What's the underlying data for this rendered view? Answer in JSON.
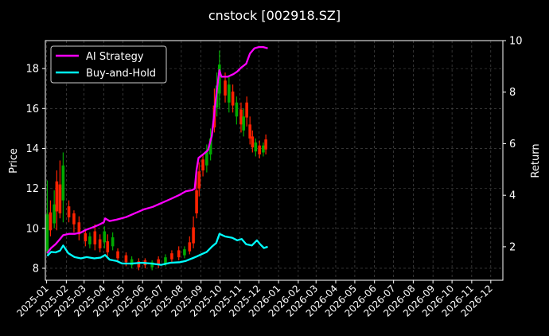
{
  "chart_data": {
    "type": "line",
    "title": "cnstock [002918.SZ]",
    "ylabel": "Price",
    "y2label": "Return",
    "xlabel": "",
    "x_ticks": [
      "2025-01",
      "2025-02",
      "2025-03",
      "2025-04",
      "2025-05",
      "2025-06",
      "2025-07",
      "2025-08",
      "2025-09",
      "2025-10",
      "2025-11",
      "2025-12",
      "2026-01",
      "2026-02",
      "2026-03",
      "2026-04",
      "2026-05",
      "2026-06",
      "2026-07",
      "2026-08",
      "2026-09",
      "2026-10",
      "2026-11",
      "2026-12"
    ],
    "xlim": [
      "2024-12-30",
      "2026-12-20"
    ],
    "ylim": [
      7.4,
      19.4
    ],
    "y_ticks": [
      8,
      10,
      12,
      14,
      16,
      18
    ],
    "y2lim": [
      0.7,
      10.0
    ],
    "y2_ticks": [
      2,
      4,
      6,
      8,
      10
    ],
    "grid": true,
    "legend_position": "top-left",
    "series": [
      {
        "name": "AI Strategy",
        "axis": "right",
        "color": "#ff00ff",
        "points": [
          [
            "2025-01-02",
            1.75
          ],
          [
            "2025-01-08",
            1.95
          ],
          [
            "2025-01-15",
            2.1
          ],
          [
            "2025-01-22",
            2.3
          ],
          [
            "2025-01-27",
            2.45
          ],
          [
            "2025-02-05",
            2.5
          ],
          [
            "2025-02-14",
            2.5
          ],
          [
            "2025-02-24",
            2.55
          ],
          [
            "2025-03-03",
            2.65
          ],
          [
            "2025-03-14",
            2.75
          ],
          [
            "2025-03-24",
            2.85
          ],
          [
            "2025-04-01",
            2.95
          ],
          [
            "2025-04-03",
            3.1
          ],
          [
            "2025-04-10",
            3.0
          ],
          [
            "2025-04-21",
            3.05
          ],
          [
            "2025-05-06",
            3.15
          ],
          [
            "2025-05-20",
            3.3
          ],
          [
            "2025-06-03",
            3.45
          ],
          [
            "2025-06-17",
            3.55
          ],
          [
            "2025-07-01",
            3.7
          ],
          [
            "2025-07-15",
            3.85
          ],
          [
            "2025-07-28",
            4.0
          ],
          [
            "2025-08-08",
            4.15
          ],
          [
            "2025-08-18",
            4.2
          ],
          [
            "2025-08-22",
            4.25
          ],
          [
            "2025-08-25",
            5.0
          ],
          [
            "2025-08-28",
            5.45
          ],
          [
            "2025-09-05",
            5.6
          ],
          [
            "2025-09-12",
            5.75
          ],
          [
            "2025-09-18",
            6.3
          ],
          [
            "2025-09-22",
            7.2
          ],
          [
            "2025-09-26",
            8.1
          ],
          [
            "2025-09-30",
            8.85
          ],
          [
            "2025-10-03",
            8.6
          ],
          [
            "2025-10-13",
            8.6
          ],
          [
            "2025-10-22",
            8.7
          ],
          [
            "2025-10-28",
            8.8
          ],
          [
            "2025-11-03",
            8.95
          ],
          [
            "2025-11-11",
            9.1
          ],
          [
            "2025-11-17",
            9.5
          ],
          [
            "2025-11-24",
            9.7
          ],
          [
            "2025-12-01",
            9.75
          ],
          [
            "2025-12-08",
            9.75
          ],
          [
            "2025-12-15",
            9.7
          ]
        ]
      },
      {
        "name": "Buy-and-Hold",
        "axis": "right",
        "color": "#00ffff",
        "points": [
          [
            "2025-01-02",
            1.65
          ],
          [
            "2025-01-08",
            1.8
          ],
          [
            "2025-01-15",
            1.78
          ],
          [
            "2025-01-22",
            1.85
          ],
          [
            "2025-01-27",
            2.05
          ],
          [
            "2025-02-04",
            1.75
          ],
          [
            "2025-02-14",
            1.6
          ],
          [
            "2025-02-24",
            1.55
          ],
          [
            "2025-03-05",
            1.6
          ],
          [
            "2025-03-17",
            1.55
          ],
          [
            "2025-03-27",
            1.58
          ],
          [
            "2025-04-03",
            1.68
          ],
          [
            "2025-04-10",
            1.5
          ],
          [
            "2025-04-21",
            1.45
          ],
          [
            "2025-04-30",
            1.35
          ],
          [
            "2025-05-15",
            1.35
          ],
          [
            "2025-05-30",
            1.38
          ],
          [
            "2025-06-15",
            1.35
          ],
          [
            "2025-06-30",
            1.3
          ],
          [
            "2025-07-15",
            1.38
          ],
          [
            "2025-07-30",
            1.4
          ],
          [
            "2025-08-08",
            1.45
          ],
          [
            "2025-08-18",
            1.55
          ],
          [
            "2025-08-25",
            1.62
          ],
          [
            "2025-09-01",
            1.7
          ],
          [
            "2025-09-10",
            1.8
          ],
          [
            "2025-09-18",
            2.0
          ],
          [
            "2025-09-25",
            2.15
          ],
          [
            "2025-09-30",
            2.5
          ],
          [
            "2025-10-09",
            2.4
          ],
          [
            "2025-10-20",
            2.35
          ],
          [
            "2025-10-28",
            2.25
          ],
          [
            "2025-11-04",
            2.3
          ],
          [
            "2025-11-11",
            2.1
          ],
          [
            "2025-11-20",
            2.05
          ],
          [
            "2025-11-28",
            2.25
          ],
          [
            "2025-12-03",
            2.1
          ],
          [
            "2025-12-09",
            1.95
          ],
          [
            "2025-12-15",
            2.0
          ]
        ]
      }
    ],
    "price_bars": {
      "axis": "left",
      "up_color": "#00aa00",
      "down_color": "#ff2200",
      "bars": [
        [
          "2025-01-02",
          9.0,
          12.4,
          8.7,
          "up"
        ],
        [
          "2025-01-07",
          10.2,
          11.4,
          9.6,
          "down"
        ],
        [
          "2025-01-13",
          10.5,
          11.9,
          10.0,
          "up"
        ],
        [
          "2025-01-17",
          11.8,
          12.9,
          9.9,
          "down"
        ],
        [
          "2025-01-22",
          11.0,
          13.4,
          10.5,
          "down"
        ],
        [
          "2025-01-27",
          12.5,
          13.8,
          10.3,
          "up"
        ],
        [
          "2025-02-05",
          10.8,
          11.4,
          10.3,
          "down"
        ],
        [
          "2025-02-13",
          10.6,
          10.9,
          9.8,
          "down"
        ],
        [
          "2025-02-21",
          10.0,
          10.6,
          9.4,
          "down"
        ],
        [
          "2025-03-03",
          9.6,
          9.9,
          9.1,
          "down"
        ],
        [
          "2025-03-10",
          9.4,
          9.8,
          9.0,
          "up"
        ],
        [
          "2025-03-18",
          9.5,
          10.2,
          8.9,
          "down"
        ],
        [
          "2025-03-26",
          9.2,
          9.7,
          8.8,
          "down"
        ],
        [
          "2025-04-02",
          9.6,
          10.1,
          9.0,
          "up"
        ],
        [
          "2025-04-07",
          9.0,
          9.7,
          8.6,
          "down"
        ],
        [
          "2025-04-15",
          9.3,
          9.8,
          8.9,
          "up"
        ],
        [
          "2025-04-23",
          8.7,
          9.0,
          8.3,
          "down"
        ],
        [
          "2025-05-06",
          8.5,
          8.8,
          8.1,
          "down"
        ],
        [
          "2025-05-15",
          8.3,
          8.6,
          8.0,
          "up"
        ],
        [
          "2025-05-26",
          8.2,
          8.5,
          7.9,
          "down"
        ],
        [
          "2025-06-05",
          8.3,
          8.5,
          8.0,
          "down"
        ],
        [
          "2025-06-16",
          8.2,
          8.4,
          7.9,
          "up"
        ],
        [
          "2025-06-26",
          8.3,
          8.6,
          8.0,
          "down"
        ],
        [
          "2025-07-07",
          8.4,
          8.7,
          8.1,
          "up"
        ],
        [
          "2025-07-17",
          8.6,
          8.9,
          8.3,
          "down"
        ],
        [
          "2025-07-28",
          8.7,
          9.1,
          8.4,
          "down"
        ],
        [
          "2025-08-06",
          8.8,
          9.1,
          8.5,
          "up"
        ],
        [
          "2025-08-14",
          9.0,
          9.6,
          8.7,
          "down"
        ],
        [
          "2025-08-20",
          9.5,
          10.6,
          9.0,
          "down"
        ],
        [
          "2025-08-25",
          11.0,
          12.8,
          10.5,
          "down"
        ],
        [
          "2025-08-29",
          12.4,
          13.3,
          11.6,
          "down"
        ],
        [
          "2025-09-04",
          13.2,
          13.7,
          12.6,
          "down"
        ],
        [
          "2025-09-10",
          13.5,
          14.2,
          12.8,
          "up"
        ],
        [
          "2025-09-16",
          14.0,
          15.0,
          13.4,
          "up"
        ],
        [
          "2025-09-22",
          15.3,
          17.0,
          14.8,
          "down"
        ],
        [
          "2025-09-26",
          16.5,
          17.8,
          15.6,
          "up"
        ],
        [
          "2025-09-30",
          17.5,
          18.9,
          16.0,
          "up"
        ],
        [
          "2025-10-09",
          17.0,
          17.8,
          16.3,
          "down"
        ],
        [
          "2025-10-15",
          16.8,
          17.6,
          15.8,
          "up"
        ],
        [
          "2025-10-21",
          16.5,
          17.2,
          15.8,
          "down"
        ],
        [
          "2025-10-27",
          16.0,
          16.6,
          15.2,
          "up"
        ],
        [
          "2025-11-03",
          15.6,
          16.3,
          14.8,
          "down"
        ],
        [
          "2025-11-07",
          15.2,
          16.0,
          14.6,
          "up"
        ],
        [
          "2025-11-12",
          16.0,
          16.6,
          15.1,
          "down"
        ],
        [
          "2025-11-17",
          14.8,
          15.6,
          14.2,
          "down"
        ],
        [
          "2025-11-21",
          14.3,
          14.9,
          13.8,
          "down"
        ],
        [
          "2025-11-26",
          14.1,
          14.5,
          13.6,
          "up"
        ],
        [
          "2025-12-02",
          13.9,
          14.4,
          13.5,
          "down"
        ],
        [
          "2025-12-08",
          14.0,
          14.3,
          13.6,
          "up"
        ],
        [
          "2025-12-12",
          14.2,
          14.7,
          13.7,
          "down"
        ]
      ]
    }
  }
}
